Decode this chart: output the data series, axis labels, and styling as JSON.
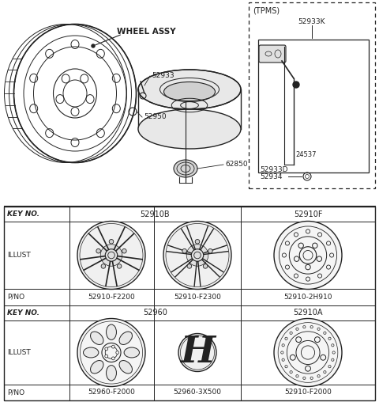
{
  "bg_color": "#ffffff",
  "line_color": "#222222",
  "table": {
    "pno_row1": [
      "52910-F2200",
      "52910-F2300",
      "52910-2H910"
    ],
    "pno_row2": [
      "52960-F2000",
      "52960-3X500",
      "52910-F2000"
    ],
    "key1_left": "52910B",
    "key1_right": "52910F",
    "key2_left": "52960",
    "key2_right": "52910A"
  }
}
